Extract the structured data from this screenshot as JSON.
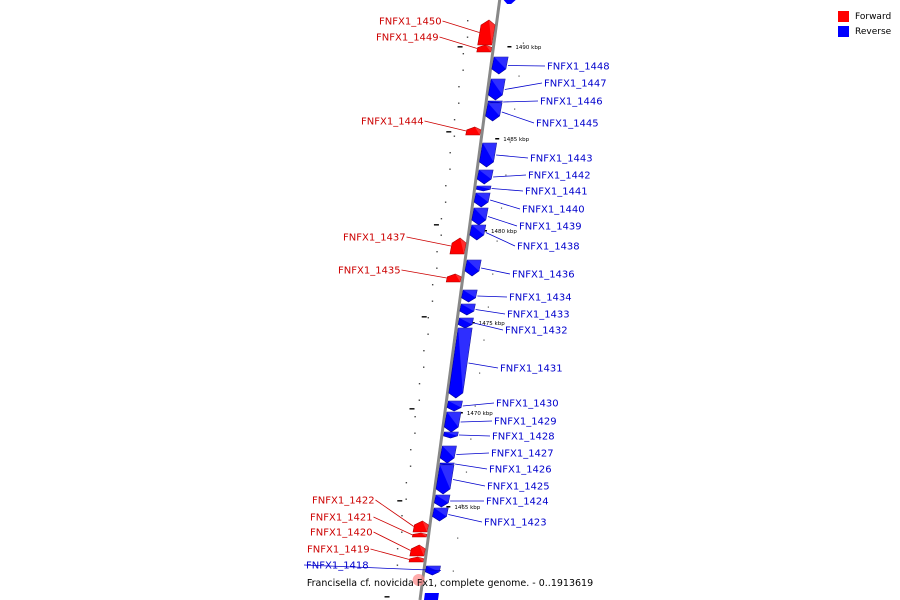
{
  "legend": [
    {
      "label": "Forward",
      "color": "#ff0000"
    },
    {
      "label": "Reverse",
      "color": "#0000ff"
    }
  ],
  "caption": "Francisella cf. novicida Fx1, complete genome. - 0..1913619",
  "colors": {
    "forward": "#ff0000",
    "reverse": "#0000ff",
    "forward_label": "#cc0000",
    "reverse_label": "#0000cc",
    "axis": "#888888"
  },
  "scale_ticks": [
    "1490 kbp",
    "1485 kbp",
    "1480 kbp",
    "1475 kbp",
    "1470 kbp",
    "1465 kbp"
  ],
  "genes": [
    {
      "name": "FNFX1_1450",
      "strand": "forward"
    },
    {
      "name": "FNFX1_1449",
      "strand": "forward"
    },
    {
      "name": "FNFX1_1448",
      "strand": "reverse"
    },
    {
      "name": "FNFX1_1447",
      "strand": "reverse"
    },
    {
      "name": "FNFX1_1446",
      "strand": "reverse"
    },
    {
      "name": "FNFX1_1445",
      "strand": "reverse"
    },
    {
      "name": "FNFX1_1444",
      "strand": "forward"
    },
    {
      "name": "FNFX1_1443",
      "strand": "reverse"
    },
    {
      "name": "FNFX1_1442",
      "strand": "reverse"
    },
    {
      "name": "FNFX1_1441",
      "strand": "reverse"
    },
    {
      "name": "FNFX1_1440",
      "strand": "reverse"
    },
    {
      "name": "FNFX1_1439",
      "strand": "reverse"
    },
    {
      "name": "FNFX1_1438",
      "strand": "reverse"
    },
    {
      "name": "FNFX1_1437",
      "strand": "forward"
    },
    {
      "name": "FNFX1_1436",
      "strand": "reverse"
    },
    {
      "name": "FNFX1_1435",
      "strand": "forward"
    },
    {
      "name": "FNFX1_1434",
      "strand": "reverse"
    },
    {
      "name": "FNFX1_1433",
      "strand": "reverse"
    },
    {
      "name": "FNFX1_1432",
      "strand": "reverse"
    },
    {
      "name": "FNFX1_1431",
      "strand": "reverse"
    },
    {
      "name": "FNFX1_1430",
      "strand": "reverse"
    },
    {
      "name": "FNFX1_1429",
      "strand": "reverse"
    },
    {
      "name": "FNFX1_1428",
      "strand": "reverse"
    },
    {
      "name": "FNFX1_1427",
      "strand": "reverse"
    },
    {
      "name": "FNFX1_1426",
      "strand": "reverse"
    },
    {
      "name": "FNFX1_1425",
      "strand": "reverse"
    },
    {
      "name": "FNFX1_1424",
      "strand": "reverse"
    },
    {
      "name": "FNFX1_1423",
      "strand": "reverse"
    },
    {
      "name": "FNFX1_1422",
      "strand": "forward"
    },
    {
      "name": "FNFX1_1421",
      "strand": "forward"
    },
    {
      "name": "FNFX1_1420",
      "strand": "forward"
    },
    {
      "name": "FNFX1_1419",
      "strand": "forward"
    },
    {
      "name": "FNFX1_1418",
      "strand": "reverse"
    }
  ]
}
